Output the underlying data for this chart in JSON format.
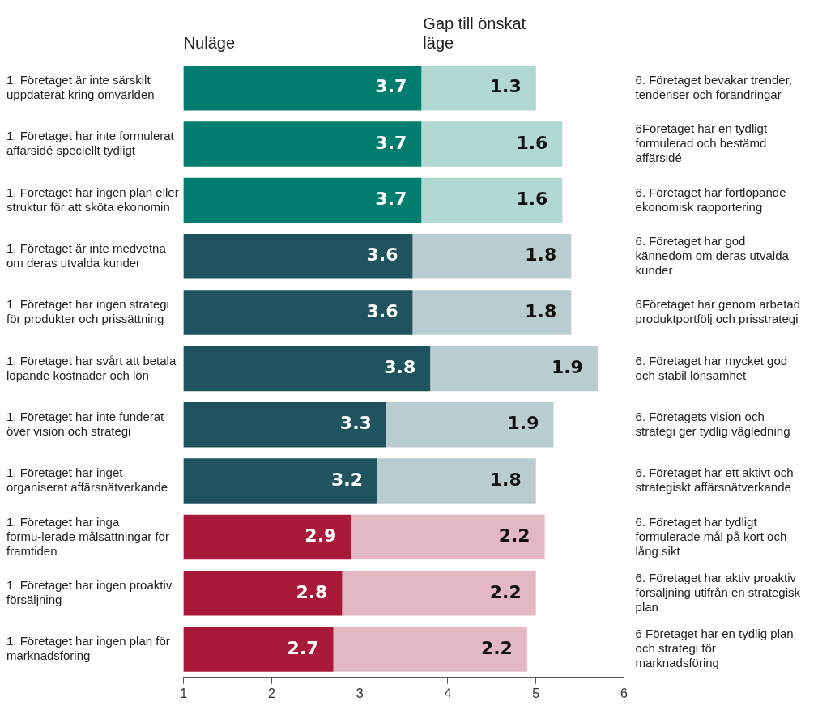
{
  "chart_data": {
    "type": "bar",
    "orientation": "horizontal",
    "stacked": true,
    "legend": false,
    "grid": false,
    "data_labels": true,
    "categories": [
      "1. Företaget är inte särskilt uppdaterat kring omvärlden",
      "1. Företaget har inte formulerat affärsidé speciellt tydligt",
      "1. Företaget har ingen plan eller struktur för att sköta ekonomin",
      "1. Företaget är inte medvetna om deras utvalda kunder",
      "1. Företaget har ingen strategi för produkter och prissättning",
      "1. Företaget har svårt att betala löpande kostnader och lön",
      "1. Företaget har inte funderat över vision och strategi",
      "1. Företaget har inget organiserat affärsnätverkande",
      "1. Företaget har inga formu-lerade målsättningar för framtiden",
      "1. Företaget har ingen proaktiv försäljning",
      "1. Företaget har ingen plan för marknadsföring"
    ],
    "y2_categories": [
      "6. Företaget bevakar trender, tendenser och förändringar",
      "6Företaget har en tydligt formulerad och bestämd affärsidé",
      "6. Företaget har fortlöpande ekonomisk rapportering",
      "6. Företaget har god kännedom om deras utvalda kunder",
      "6Företaget har genom arbetad produktportfölj och prisstrategi",
      "6. Företaget har mycket god och stabil lönsamhet",
      "6. Företagets vision och strategi ger tydlig vägledning",
      "6. Företaget har ett aktivt och strategiskt affärsnätverkande",
      "6. Företaget har tydligt formulerade mål på kort och lång sikt",
      "6. Företaget har aktiv proaktiv försäljning utifrån en strategisk plan",
      "6 Företaget har en tydlig plan och strategi för marknadsföring"
    ],
    "series": [
      {
        "name": "Nuläge",
        "values": [
          3.7,
          3.7,
          3.7,
          3.6,
          3.6,
          3.8,
          3.3,
          3.2,
          2.9,
          2.8,
          2.7
        ],
        "colors": [
          "#007d6e",
          "#007d6e",
          "#007d6e",
          "#1f545e",
          "#1f545e",
          "#1f545e",
          "#1f545e",
          "#1f545e",
          "#a8193a",
          "#a8193a",
          "#a8193a"
        ]
      },
      {
        "name": "Gap till önskat läge",
        "values": [
          1.3,
          1.6,
          1.6,
          1.8,
          1.8,
          1.9,
          1.9,
          1.8,
          2.2,
          2.2,
          2.2
        ],
        "colors": [
          "#b2d8d3",
          "#b2d8d3",
          "#b2d8d3",
          "#b9cccf",
          "#b9cccf",
          "#b9cccf",
          "#b9cccf",
          "#b9cccf",
          "#e4b8c3",
          "#e4b8c3",
          "#e4b8c3"
        ]
      }
    ],
    "xlim": [
      1,
      6
    ],
    "xticks": [
      1,
      2,
      3,
      4,
      5,
      6
    ]
  }
}
